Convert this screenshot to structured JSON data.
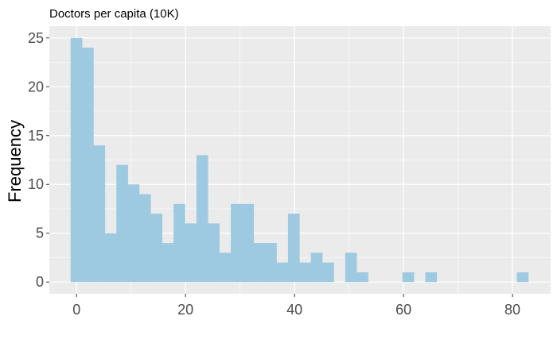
{
  "chart_data": {
    "type": "bar",
    "title": "Doctors per capita (10K)",
    "xlabel": "",
    "ylabel": "Frequency",
    "bin_width": 2.1,
    "x_bin_starts": [
      -1.1,
      1.0,
      3.1,
      5.2,
      7.3,
      9.4,
      11.5,
      13.6,
      15.7,
      17.8,
      19.9,
      22.0,
      24.1,
      26.2,
      28.3,
      30.4,
      32.5,
      34.6,
      36.7,
      38.8,
      40.9,
      43.0,
      45.1,
      47.2,
      49.3,
      51.4,
      53.5,
      55.6,
      57.7,
      59.8,
      61.9,
      64.0,
      66.1,
      68.2,
      70.3,
      72.4,
      74.5,
      76.6,
      78.7,
      80.8
    ],
    "values": [
      25,
      24,
      14,
      5,
      12,
      10,
      9,
      7,
      4,
      8,
      6,
      13,
      6,
      3,
      8,
      8,
      4,
      4,
      2,
      7,
      2,
      3,
      2,
      0,
      3,
      1,
      0,
      0,
      0,
      1,
      0,
      1,
      0,
      0,
      0,
      0,
      0,
      0,
      0,
      1
    ],
    "xlim": [
      -5,
      87
    ],
    "ylim": [
      -1.2,
      26.2
    ],
    "x_ticks": [
      0,
      20,
      40,
      60,
      80
    ],
    "y_ticks": [
      0,
      5,
      10,
      15,
      20,
      25
    ],
    "grid": true,
    "bar_color": "#9ECAE1",
    "panel_color": "#EBEBEB",
    "grid_color": "#FFFFFF"
  }
}
